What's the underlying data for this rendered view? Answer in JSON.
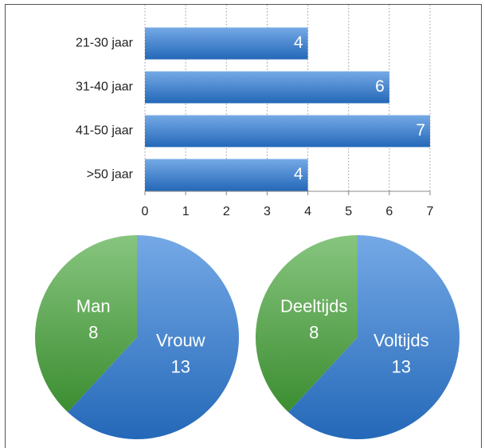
{
  "chart_data": [
    {
      "type": "bar",
      "orientation": "horizontal",
      "categories": [
        "21-30 jaar",
        "31-40 jaar",
        "41-50 jaar",
        ">50 jaar"
      ],
      "values": [
        4,
        6,
        7,
        4
      ],
      "color": "#2a7ad8",
      "xlim": [
        0,
        7
      ],
      "xticks": [
        0,
        1,
        2,
        3,
        4,
        5,
        6,
        7
      ],
      "grid": true
    },
    {
      "type": "pie",
      "categories": [
        "Vrouw",
        "Man"
      ],
      "values": [
        13,
        8
      ],
      "colors": [
        "#2a7ad8",
        "#46a63a"
      ]
    },
    {
      "type": "pie",
      "categories": [
        "Voltijds",
        "Deeltijds"
      ],
      "values": [
        13,
        8
      ],
      "colors": [
        "#2a7ad8",
        "#46a63a"
      ]
    }
  ]
}
